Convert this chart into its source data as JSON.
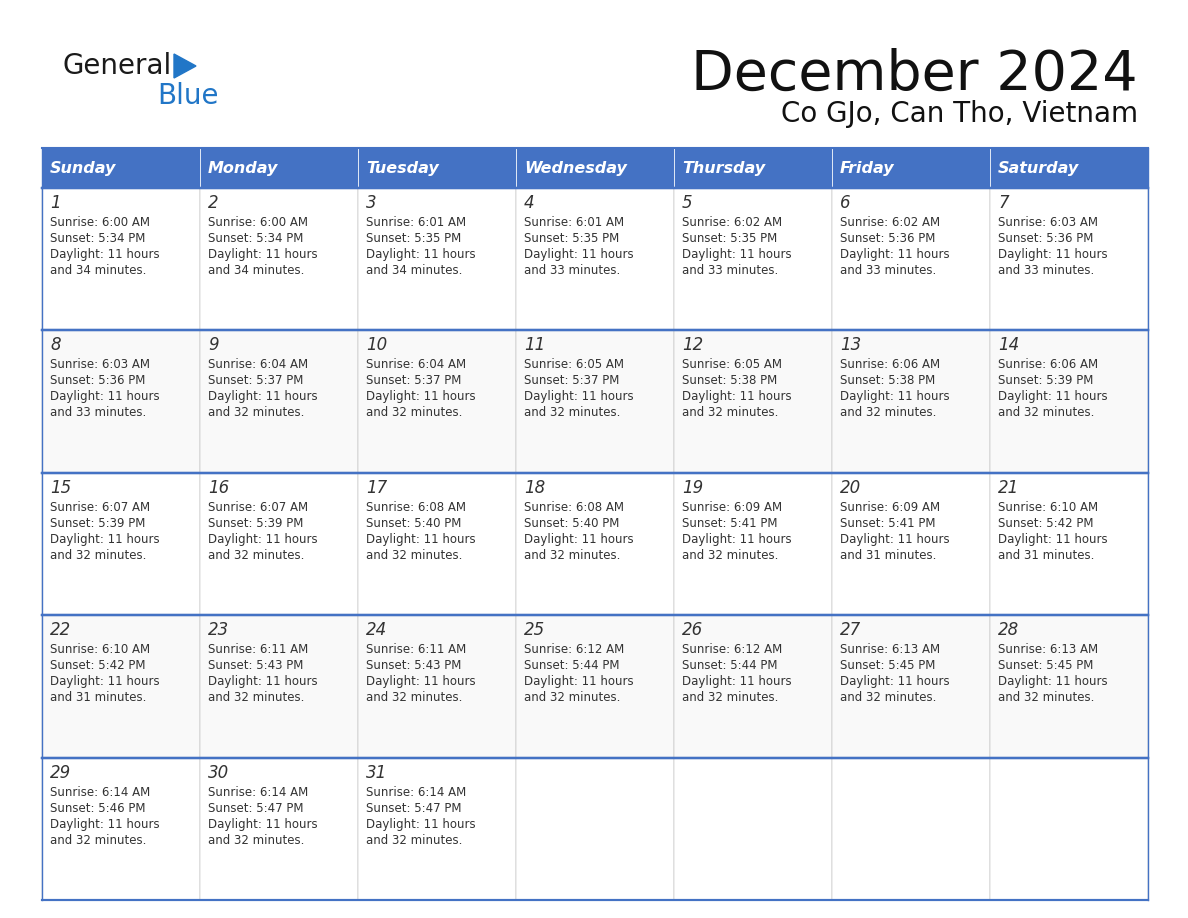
{
  "title": "December 2024",
  "subtitle": "Co GJo, Can Tho, Vietnam",
  "header_color": "#4472C4",
  "header_text_color": "#FFFFFF",
  "cell_bg_color": "#FFFFFF",
  "border_color": "#4472C4",
  "text_color": "#333333",
  "days_of_week": [
    "Sunday",
    "Monday",
    "Tuesday",
    "Wednesday",
    "Thursday",
    "Friday",
    "Saturday"
  ],
  "calendar_data": [
    [
      {
        "day": "1",
        "sunrise": "6:00 AM",
        "sunset": "5:34 PM",
        "daylight_h": "11 hours",
        "daylight_m": "and 34 minutes."
      },
      {
        "day": "2",
        "sunrise": "6:00 AM",
        "sunset": "5:34 PM",
        "daylight_h": "11 hours",
        "daylight_m": "and 34 minutes."
      },
      {
        "day": "3",
        "sunrise": "6:01 AM",
        "sunset": "5:35 PM",
        "daylight_h": "11 hours",
        "daylight_m": "and 34 minutes."
      },
      {
        "day": "4",
        "sunrise": "6:01 AM",
        "sunset": "5:35 PM",
        "daylight_h": "11 hours",
        "daylight_m": "and 33 minutes."
      },
      {
        "day": "5",
        "sunrise": "6:02 AM",
        "sunset": "5:35 PM",
        "daylight_h": "11 hours",
        "daylight_m": "and 33 minutes."
      },
      {
        "day": "6",
        "sunrise": "6:02 AM",
        "sunset": "5:36 PM",
        "daylight_h": "11 hours",
        "daylight_m": "and 33 minutes."
      },
      {
        "day": "7",
        "sunrise": "6:03 AM",
        "sunset": "5:36 PM",
        "daylight_h": "11 hours",
        "daylight_m": "and 33 minutes."
      }
    ],
    [
      {
        "day": "8",
        "sunrise": "6:03 AM",
        "sunset": "5:36 PM",
        "daylight_h": "11 hours",
        "daylight_m": "and 33 minutes."
      },
      {
        "day": "9",
        "sunrise": "6:04 AM",
        "sunset": "5:37 PM",
        "daylight_h": "11 hours",
        "daylight_m": "and 32 minutes."
      },
      {
        "day": "10",
        "sunrise": "6:04 AM",
        "sunset": "5:37 PM",
        "daylight_h": "11 hours",
        "daylight_m": "and 32 minutes."
      },
      {
        "day": "11",
        "sunrise": "6:05 AM",
        "sunset": "5:37 PM",
        "daylight_h": "11 hours",
        "daylight_m": "and 32 minutes."
      },
      {
        "day": "12",
        "sunrise": "6:05 AM",
        "sunset": "5:38 PM",
        "daylight_h": "11 hours",
        "daylight_m": "and 32 minutes."
      },
      {
        "day": "13",
        "sunrise": "6:06 AM",
        "sunset": "5:38 PM",
        "daylight_h": "11 hours",
        "daylight_m": "and 32 minutes."
      },
      {
        "day": "14",
        "sunrise": "6:06 AM",
        "sunset": "5:39 PM",
        "daylight_h": "11 hours",
        "daylight_m": "and 32 minutes."
      }
    ],
    [
      {
        "day": "15",
        "sunrise": "6:07 AM",
        "sunset": "5:39 PM",
        "daylight_h": "11 hours",
        "daylight_m": "and 32 minutes."
      },
      {
        "day": "16",
        "sunrise": "6:07 AM",
        "sunset": "5:39 PM",
        "daylight_h": "11 hours",
        "daylight_m": "and 32 minutes."
      },
      {
        "day": "17",
        "sunrise": "6:08 AM",
        "sunset": "5:40 PM",
        "daylight_h": "11 hours",
        "daylight_m": "and 32 minutes."
      },
      {
        "day": "18",
        "sunrise": "6:08 AM",
        "sunset": "5:40 PM",
        "daylight_h": "11 hours",
        "daylight_m": "and 32 minutes."
      },
      {
        "day": "19",
        "sunrise": "6:09 AM",
        "sunset": "5:41 PM",
        "daylight_h": "11 hours",
        "daylight_m": "and 32 minutes."
      },
      {
        "day": "20",
        "sunrise": "6:09 AM",
        "sunset": "5:41 PM",
        "daylight_h": "11 hours",
        "daylight_m": "and 31 minutes."
      },
      {
        "day": "21",
        "sunrise": "6:10 AM",
        "sunset": "5:42 PM",
        "daylight_h": "11 hours",
        "daylight_m": "and 31 minutes."
      }
    ],
    [
      {
        "day": "22",
        "sunrise": "6:10 AM",
        "sunset": "5:42 PM",
        "daylight_h": "11 hours",
        "daylight_m": "and 31 minutes."
      },
      {
        "day": "23",
        "sunrise": "6:11 AM",
        "sunset": "5:43 PM",
        "daylight_h": "11 hours",
        "daylight_m": "and 32 minutes."
      },
      {
        "day": "24",
        "sunrise": "6:11 AM",
        "sunset": "5:43 PM",
        "daylight_h": "11 hours",
        "daylight_m": "and 32 minutes."
      },
      {
        "day": "25",
        "sunrise": "6:12 AM",
        "sunset": "5:44 PM",
        "daylight_h": "11 hours",
        "daylight_m": "and 32 minutes."
      },
      {
        "day": "26",
        "sunrise": "6:12 AM",
        "sunset": "5:44 PM",
        "daylight_h": "11 hours",
        "daylight_m": "and 32 minutes."
      },
      {
        "day": "27",
        "sunrise": "6:13 AM",
        "sunset": "5:45 PM",
        "daylight_h": "11 hours",
        "daylight_m": "and 32 minutes."
      },
      {
        "day": "28",
        "sunrise": "6:13 AM",
        "sunset": "5:45 PM",
        "daylight_h": "11 hours",
        "daylight_m": "and 32 minutes."
      }
    ],
    [
      {
        "day": "29",
        "sunrise": "6:14 AM",
        "sunset": "5:46 PM",
        "daylight_h": "11 hours",
        "daylight_m": "and 32 minutes."
      },
      {
        "day": "30",
        "sunrise": "6:14 AM",
        "sunset": "5:47 PM",
        "daylight_h": "11 hours",
        "daylight_m": "and 32 minutes."
      },
      {
        "day": "31",
        "sunrise": "6:14 AM",
        "sunset": "5:47 PM",
        "daylight_h": "11 hours",
        "daylight_m": "and 32 minutes."
      },
      null,
      null,
      null,
      null
    ]
  ]
}
